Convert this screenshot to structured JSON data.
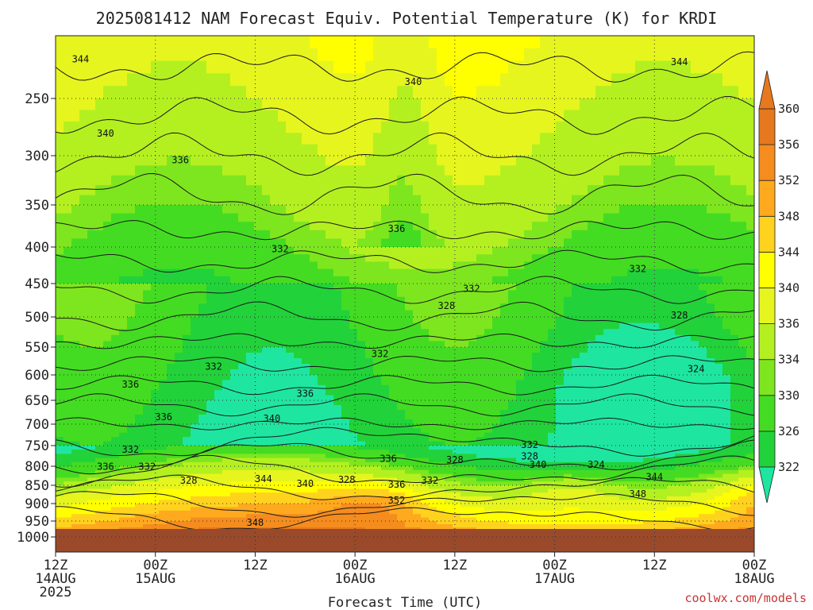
{
  "chart_data": {
    "type": "heatmap",
    "title": "2025081412 NAM Forecast Equiv. Potential Temperature (K) for KRDI",
    "xlabel": "Forecast Time (UTC)",
    "credit": "coolwx.com/models",
    "y_ticks": [
      "250",
      "300",
      "350",
      "400",
      "450",
      "500",
      "550",
      "600",
      "650",
      "700",
      "750",
      "800",
      "850",
      "900",
      "950",
      "1000"
    ],
    "y_ticks_numeric": [
      250,
      300,
      350,
      400,
      450,
      500,
      550,
      600,
      650,
      700,
      750,
      800,
      850,
      900,
      950,
      1000
    ],
    "ylim": [
      200,
      1000
    ],
    "y_axis": "pressure (hPa), reversed, log-like",
    "x_ticks": [
      {
        "line1": "12Z",
        "line2": "14AUG",
        "line3": "2025",
        "hour": 0
      },
      {
        "line1": "00Z",
        "line2": "15AUG",
        "line3": "",
        "hour": 12
      },
      {
        "line1": "12Z",
        "line2": "",
        "line3": "",
        "hour": 24
      },
      {
        "line1": "00Z",
        "line2": "16AUG",
        "line3": "",
        "hour": 36
      },
      {
        "line1": "12Z",
        "line2": "",
        "line3": "",
        "hour": 48
      },
      {
        "line1": "00Z",
        "line2": "17AUG",
        "line3": "",
        "hour": 60
      },
      {
        "line1": "12Z",
        "line2": "",
        "line3": "",
        "hour": 72
      },
      {
        "line1": "00Z",
        "line2": "18AUG",
        "line3": "",
        "hour": 84
      }
    ],
    "xlim": [
      0,
      84
    ],
    "colorbar": {
      "levels": [
        322,
        326,
        330,
        334,
        336,
        340,
        344,
        348,
        352,
        356,
        360
      ],
      "labels": [
        "322",
        "326",
        "330",
        "334",
        "336",
        "340",
        "344",
        "348",
        "352",
        "356",
        "360"
      ],
      "colors": [
        "#1ee6a0",
        "#22d23a",
        "#44dc22",
        "#7ee61e",
        "#b4f020",
        "#e6f51e",
        "#ffff00",
        "#ffd21e",
        "#ffaa1e",
        "#f58c1e",
        "#e6781e"
      ]
    },
    "surface_color": "#9a4a2a",
    "grid": true,
    "contour_labels": [
      {
        "text": "344",
        "hour": 3,
        "p": 220
      },
      {
        "text": "340",
        "hour": 43,
        "p": 238
      },
      {
        "text": "344",
        "hour": 75,
        "p": 222
      },
      {
        "text": "340",
        "hour": 6,
        "p": 282
      },
      {
        "text": "336",
        "hour": 15,
        "p": 306
      },
      {
        "text": "336",
        "hour": 41,
        "p": 380
      },
      {
        "text": "332",
        "hour": 27,
        "p": 405
      },
      {
        "text": "332",
        "hour": 70,
        "p": 432
      },
      {
        "text": "332",
        "hour": 50,
        "p": 460
      },
      {
        "text": "328",
        "hour": 47,
        "p": 486
      },
      {
        "text": "328",
        "hour": 75,
        "p": 500
      },
      {
        "text": "332",
        "hour": 39,
        "p": 565
      },
      {
        "text": "332",
        "hour": 19,
        "p": 588
      },
      {
        "text": "324",
        "hour": 77,
        "p": 592
      },
      {
        "text": "336",
        "hour": 9,
        "p": 622
      },
      {
        "text": "336",
        "hour": 30,
        "p": 640
      },
      {
        "text": "336",
        "hour": 13,
        "p": 688
      },
      {
        "text": "340",
        "hour": 26,
        "p": 692
      },
      {
        "text": "332",
        "hour": 9,
        "p": 763
      },
      {
        "text": "332",
        "hour": 57,
        "p": 752
      },
      {
        "text": "336",
        "hour": 40,
        "p": 786
      },
      {
        "text": "328",
        "hour": 48,
        "p": 788
      },
      {
        "text": "328",
        "hour": 57,
        "p": 780
      },
      {
        "text": "324",
        "hour": 65,
        "p": 800
      },
      {
        "text": "340",
        "hour": 58,
        "p": 800
      },
      {
        "text": "336",
        "hour": 6,
        "p": 805
      },
      {
        "text": "332",
        "hour": 11,
        "p": 805
      },
      {
        "text": "328",
        "hour": 16,
        "p": 842
      },
      {
        "text": "344",
        "hour": 25,
        "p": 838
      },
      {
        "text": "340",
        "hour": 30,
        "p": 850
      },
      {
        "text": "328",
        "hour": 35,
        "p": 840
      },
      {
        "text": "332",
        "hour": 45,
        "p": 842
      },
      {
        "text": "336",
        "hour": 41,
        "p": 852
      },
      {
        "text": "344",
        "hour": 72,
        "p": 832
      },
      {
        "text": "348",
        "hour": 70,
        "p": 878
      },
      {
        "text": "352",
        "hour": 41,
        "p": 896
      },
      {
        "text": "348",
        "hour": 24,
        "p": 960
      }
    ]
  }
}
